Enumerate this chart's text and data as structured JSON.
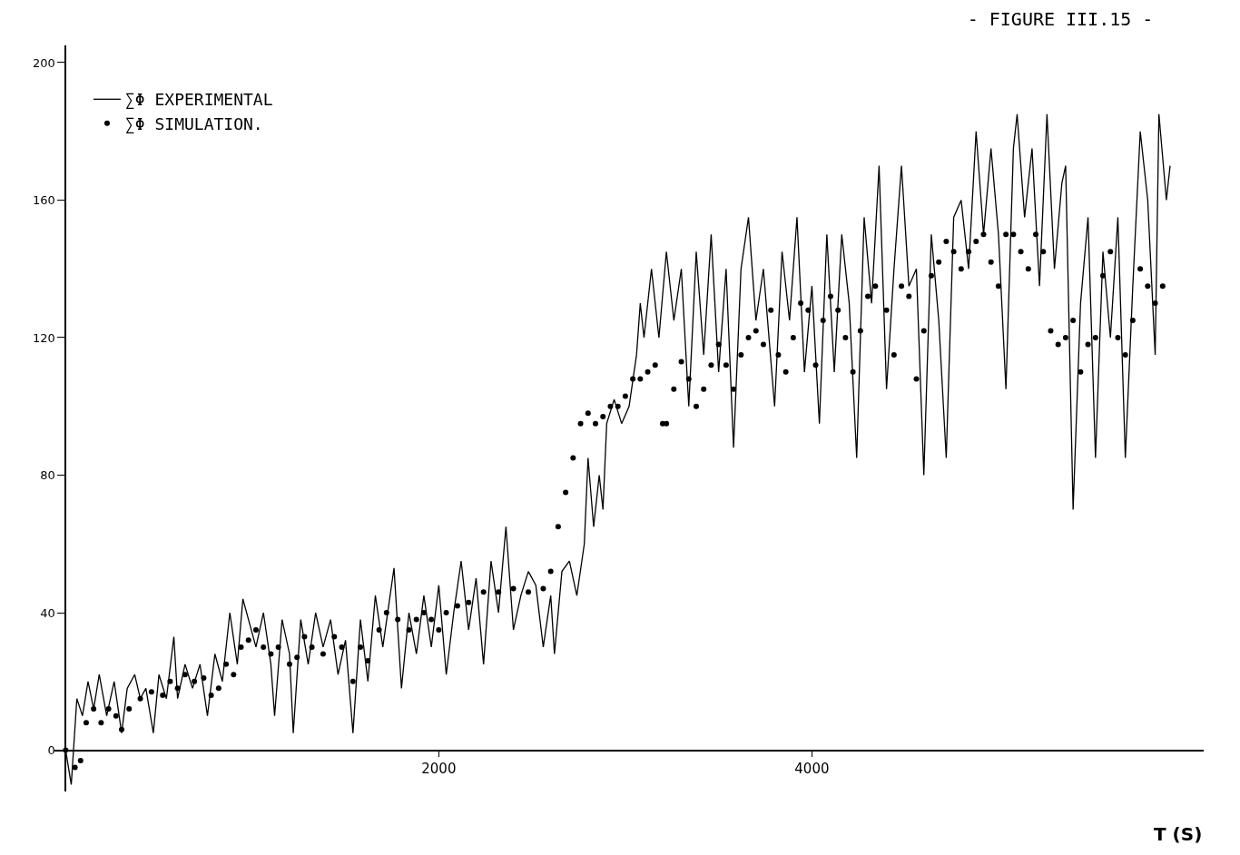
{
  "chart_data": {
    "type": "line",
    "title": "- FIGURE III.15 -",
    "xlabel": "T (S)",
    "xlim": [
      -60,
      6100
    ],
    "ylim": [
      -12,
      205
    ],
    "xticks": [
      2000,
      4000
    ],
    "yticks": [
      0,
      40,
      80,
      120,
      160,
      200
    ],
    "legend": "top left",
    "series": [
      {
        "name": "∑Φ EXPERIMENTAL",
        "color": "#000000",
        "line_style": "solid",
        "x": [
          0,
          30,
          60,
          90,
          120,
          150,
          180,
          220,
          260,
          300,
          330,
          370,
          400,
          430,
          470,
          500,
          540,
          580,
          600,
          640,
          680,
          720,
          760,
          800,
          840,
          880,
          920,
          950,
          980,
          1020,
          1060,
          1100,
          1120,
          1160,
          1200,
          1220,
          1260,
          1300,
          1340,
          1380,
          1420,
          1460,
          1500,
          1540,
          1580,
          1620,
          1660,
          1700,
          1760,
          1800,
          1840,
          1880,
          1920,
          1960,
          2000,
          2040,
          2080,
          2120,
          2160,
          2200,
          2240,
          2280,
          2320,
          2360,
          2400,
          2440,
          2480,
          2520,
          2560,
          2600,
          2620,
          2660,
          2700,
          2740,
          2780,
          2800,
          2830,
          2860,
          2880,
          2900,
          2940,
          2980,
          3020,
          3060,
          3080,
          3100,
          3140,
          3180,
          3220,
          3260,
          3300,
          3340,
          3380,
          3420,
          3460,
          3500,
          3540,
          3580,
          3620,
          3660,
          3700,
          3740,
          3800,
          3840,
          3880,
          3920,
          3960,
          4000,
          4040,
          4080,
          4120,
          4160,
          4200,
          4240,
          4280,
          4320,
          4360,
          4400,
          4440,
          4480,
          4520,
          4560,
          4600,
          4640,
          4680,
          4720,
          4760,
          4800,
          4840,
          4880,
          4920,
          4960,
          5000,
          5040,
          5080,
          5100,
          5140,
          5180,
          5220,
          5260,
          5300,
          5340,
          5360,
          5400,
          5440,
          5480,
          5520,
          5560,
          5600,
          5640,
          5680,
          5720,
          5760,
          5800,
          5840,
          5860,
          5900,
          5920
        ],
        "values": [
          0,
          -10,
          15,
          10,
          20,
          12,
          22,
          10,
          20,
          5,
          18,
          22,
          15,
          18,
          5,
          22,
          15,
          33,
          15,
          25,
          18,
          25,
          10,
          28,
          20,
          40,
          25,
          44,
          38,
          30,
          40,
          25,
          10,
          38,
          28,
          5,
          38,
          25,
          40,
          30,
          38,
          22,
          32,
          5,
          38,
          20,
          45,
          30,
          53,
          18,
          40,
          28,
          45,
          30,
          48,
          22,
          40,
          55,
          35,
          50,
          25,
          55,
          40,
          65,
          35,
          45,
          52,
          48,
          30,
          45,
          28,
          52,
          55,
          45,
          60,
          85,
          65,
          80,
          70,
          95,
          102,
          95,
          100,
          115,
          130,
          120,
          140,
          120,
          145,
          125,
          140,
          100,
          145,
          115,
          150,
          110,
          140,
          88,
          140,
          155,
          125,
          140,
          100,
          145,
          125,
          155,
          110,
          135,
          95,
          150,
          110,
          150,
          130,
          85,
          155,
          130,
          170,
          105,
          140,
          170,
          135,
          140,
          80,
          150,
          125,
          85,
          155,
          160,
          140,
          180,
          150,
          175,
          150,
          105,
          175,
          185,
          155,
          175,
          135,
          185,
          140,
          165,
          170,
          70,
          130,
          155,
          85,
          145,
          120,
          155,
          85,
          135,
          180,
          160,
          115,
          185,
          160,
          170
        ]
      },
      {
        "name": "∑Φ SIMULATION.",
        "color": "#000000",
        "type": "scatter",
        "marker": "circle",
        "x": [
          0,
          50,
          80,
          110,
          150,
          190,
          230,
          270,
          300,
          340,
          400,
          460,
          520,
          560,
          600,
          640,
          690,
          740,
          780,
          820,
          860,
          900,
          940,
          980,
          1020,
          1060,
          1100,
          1140,
          1200,
          1240,
          1280,
          1320,
          1380,
          1440,
          1480,
          1540,
          1580,
          1620,
          1680,
          1720,
          1780,
          1840,
          1880,
          1920,
          1960,
          2000,
          2040,
          2100,
          2160,
          2240,
          2320,
          2400,
          2480,
          2560,
          2600,
          2640,
          2680,
          2720,
          2760,
          2800,
          2840,
          2880,
          2920,
          2960,
          3000,
          3040,
          3080,
          3120,
          3160,
          3200,
          3220,
          3260,
          3300,
          3340,
          3380,
          3420,
          3460,
          3500,
          3540,
          3580,
          3620,
          3660,
          3700,
          3740,
          3780,
          3820,
          3860,
          3900,
          3940,
          3980,
          4020,
          4060,
          4100,
          4140,
          4180,
          4220,
          4260,
          4300,
          4340,
          4400,
          4440,
          4480,
          4520,
          4560,
          4600,
          4640,
          4680,
          4720,
          4760,
          4800,
          4840,
          4880,
          4920,
          4960,
          5000,
          5040,
          5080,
          5120,
          5160,
          5200,
          5240,
          5280,
          5320,
          5360,
          5400,
          5440,
          5480,
          5520,
          5560,
          5600,
          5640,
          5680,
          5720,
          5760,
          5800,
          5840,
          5880
        ],
        "values": [
          0,
          -5,
          -3,
          8,
          12,
          8,
          12,
          10,
          6,
          12,
          15,
          17,
          16,
          20,
          18,
          22,
          20,
          21,
          16,
          18,
          25,
          22,
          30,
          32,
          35,
          30,
          28,
          30,
          25,
          27,
          33,
          30,
          28,
          33,
          30,
          20,
          30,
          26,
          35,
          40,
          38,
          35,
          38,
          40,
          38,
          35,
          40,
          42,
          43,
          46,
          46,
          47,
          46,
          47,
          52,
          65,
          75,
          85,
          95,
          98,
          95,
          97,
          100,
          100,
          103,
          108,
          108,
          110,
          112,
          95,
          95,
          105,
          113,
          108,
          100,
          105,
          112,
          118,
          112,
          105,
          115,
          120,
          122,
          118,
          128,
          115,
          110,
          120,
          130,
          128,
          112,
          125,
          132,
          128,
          120,
          110,
          122,
          132,
          135,
          128,
          115,
          135,
          132,
          108,
          122,
          138,
          142,
          148,
          145,
          140,
          145,
          148,
          150,
          142,
          135,
          150,
          150,
          145,
          140,
          150,
          145,
          122,
          118,
          120,
          125,
          110,
          118,
          120,
          138,
          145,
          120,
          115,
          125,
          140,
          135,
          130,
          135
        ]
      }
    ]
  }
}
